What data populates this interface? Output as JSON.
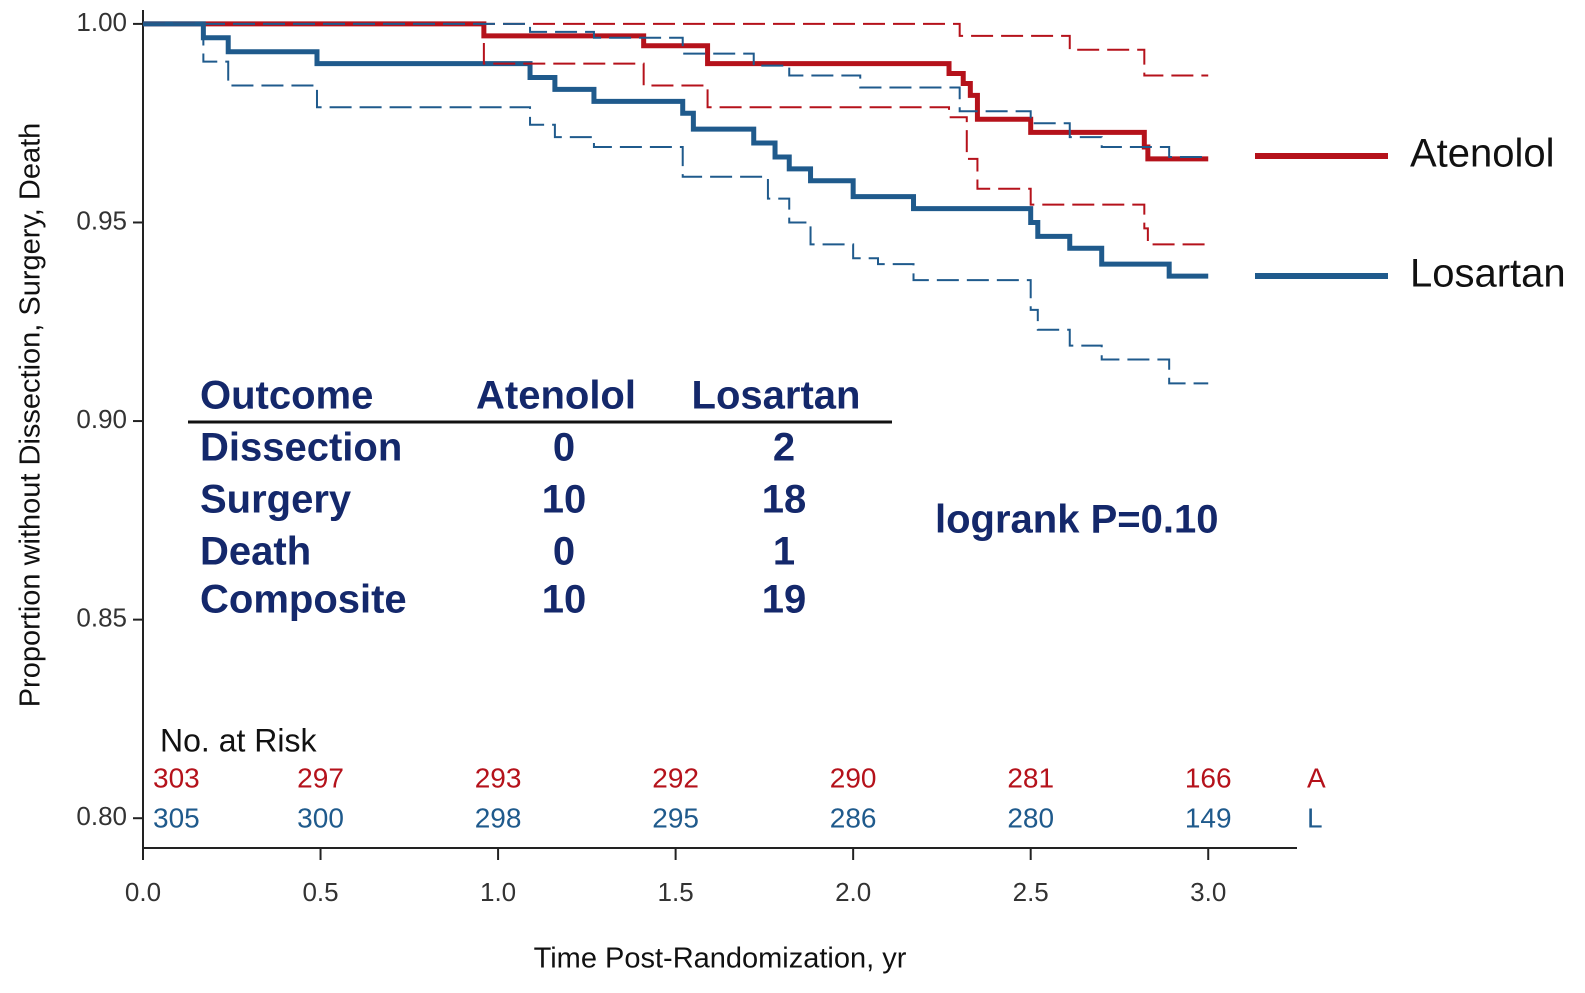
{
  "chart_data": {
    "type": "step",
    "xlabel": "Time Post-Randomization, yr",
    "ylabel": "Proportion without Dissection, Surgery, Death",
    "xlim": [
      0,
      3.25
    ],
    "ylim": [
      0.7925,
      1.0035
    ],
    "xticks": [
      {
        "value": 0,
        "label": "0.0"
      },
      {
        "value": 0.5,
        "label": "0.5"
      },
      {
        "value": 1,
        "label": "1.0"
      },
      {
        "value": 1.5,
        "label": "1.5"
      },
      {
        "value": 2,
        "label": "2.0"
      },
      {
        "value": 2.5,
        "label": "2.5"
      },
      {
        "value": 3,
        "label": "3.0"
      }
    ],
    "yticks": [
      {
        "value": 0.8,
        "label": "0.80"
      },
      {
        "value": 0.85,
        "label": "0.85"
      },
      {
        "value": 0.9,
        "label": "0.90"
      },
      {
        "value": 0.95,
        "label": "0.95"
      },
      {
        "value": 1,
        "label": "1.00"
      }
    ],
    "series": [
      {
        "name": "Atenolol",
        "color": "#b5121b",
        "dashed": false,
        "x": [
          0,
          0.96,
          1.41,
          1.59,
          2.27,
          2.31,
          2.33,
          2.35,
          2.5,
          2.82,
          2.83,
          3.0
        ],
        "values": [
          1.0,
          0.997,
          0.9945,
          0.99,
          0.9875,
          0.985,
          0.982,
          0.976,
          0.9727,
          0.969,
          0.966,
          0.966
        ]
      },
      {
        "name": "Losartan",
        "color": "#1f5a8c",
        "dashed": false,
        "x": [
          0,
          0.17,
          0.24,
          0.49,
          1.09,
          1.16,
          1.27,
          1.52,
          1.55,
          1.72,
          1.78,
          1.82,
          1.88,
          2.0,
          2.17,
          2.5,
          2.52,
          2.61,
          2.7,
          2.89,
          3.0
        ],
        "values": [
          1.0,
          0.9965,
          0.993,
          0.99,
          0.9865,
          0.9835,
          0.9805,
          0.9775,
          0.9735,
          0.97,
          0.9665,
          0.9635,
          0.9605,
          0.9565,
          0.9535,
          0.95,
          0.9465,
          0.9435,
          0.9395,
          0.9365,
          0.9365
        ]
      },
      {
        "color": "#b5121b",
        "dashed": true,
        "x": [
          0,
          2.3,
          2.61,
          2.82,
          3.0
        ],
        "values": [
          1.0,
          0.997,
          0.9935,
          0.987,
          0.987
        ]
      },
      {
        "color": "#b5121b",
        "dashed": true,
        "x": [
          0,
          0.96,
          1.41,
          1.59,
          2.27,
          2.32,
          2.35,
          2.5,
          2.82,
          2.83,
          3.0
        ],
        "values": [
          1.0,
          0.99,
          0.9845,
          0.979,
          0.9765,
          0.966,
          0.9585,
          0.9545,
          0.9485,
          0.9445,
          0.9445
        ]
      },
      {
        "color": "#1f5a8c",
        "dashed": true,
        "x": [
          0,
          1.09,
          1.27,
          1.52,
          1.72,
          1.82,
          2.02,
          2.3,
          2.5,
          2.61,
          2.7,
          2.89,
          3.0
        ],
        "values": [
          1.0,
          0.998,
          0.9965,
          0.9925,
          0.9895,
          0.987,
          0.984,
          0.978,
          0.975,
          0.9715,
          0.969,
          0.9665,
          0.9665
        ]
      },
      {
        "color": "#1f5a8c",
        "dashed": true,
        "x": [
          0,
          0.17,
          0.24,
          0.49,
          1.09,
          1.16,
          1.27,
          1.52,
          1.76,
          1.82,
          1.88,
          2.0,
          2.07,
          2.17,
          2.5,
          2.52,
          2.61,
          2.7,
          2.89,
          3.0
        ],
        "values": [
          1.0,
          0.9905,
          0.9845,
          0.979,
          0.9746,
          0.9715,
          0.969,
          0.9615,
          0.956,
          0.95,
          0.9445,
          0.941,
          0.9395,
          0.9355,
          0.928,
          0.923,
          0.919,
          0.9155,
          0.9095,
          0.9095
        ]
      }
    ],
    "risk_table": {
      "title": "No. at Risk",
      "rows": [
        {
          "label": "A",
          "color": "#b5121b",
          "values": [
            303,
            297,
            293,
            292,
            290,
            281,
            166
          ]
        },
        {
          "label": "L",
          "color": "#1f5a8c",
          "values": [
            305,
            300,
            298,
            295,
            286,
            280,
            149
          ]
        }
      ]
    },
    "outcome_table": {
      "columns": [
        "Outcome",
        "Atenolol",
        "Losartan"
      ],
      "rows": [
        [
          "Dissection",
          0,
          2
        ],
        [
          "Surgery",
          10,
          18
        ],
        [
          "Death",
          0,
          1
        ],
        [
          "Composite",
          10,
          19
        ]
      ]
    },
    "annotation": "logrank P=0.10"
  }
}
